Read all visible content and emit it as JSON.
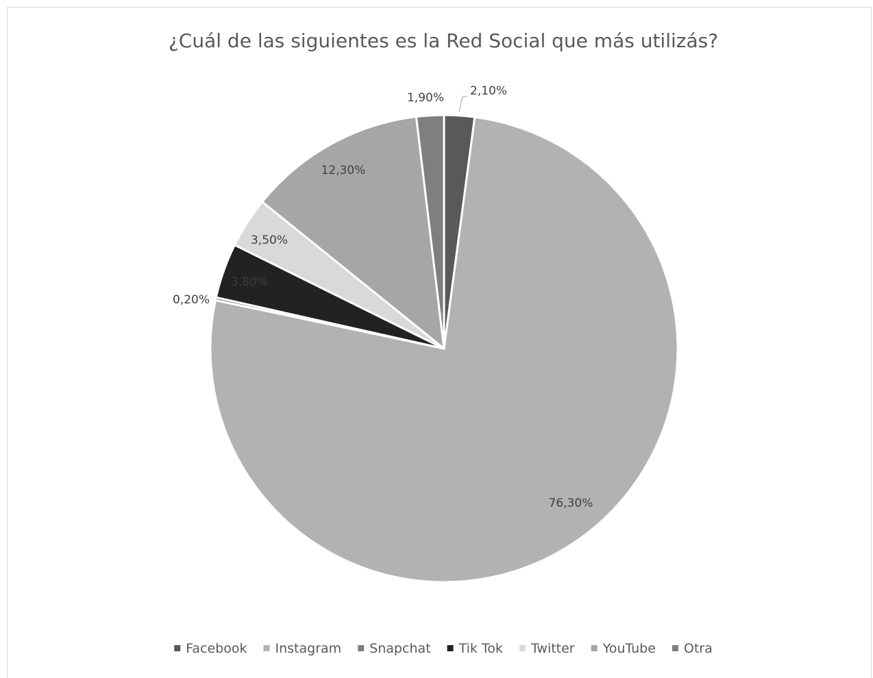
{
  "chart_data": {
    "type": "pie",
    "title": "¿Cuál de las siguientes es la Red Social que más utilizás?",
    "legend_position": "bottom",
    "slices": [
      {
        "name": "Facebook",
        "value": 2.1,
        "label": "2,10%",
        "color": "#595959",
        "label_color": "#404040"
      },
      {
        "name": "Instagram",
        "value": 76.3,
        "label": "76,30%",
        "color": "#b2b2b2",
        "label_color": "#404040"
      },
      {
        "name": "Snapchat",
        "value": 0.2,
        "label": "0,20%",
        "color": "#7f7f7f",
        "label_color": "#404040"
      },
      {
        "name": "Tik Tok",
        "value": 3.8,
        "label": "3,80%",
        "color": "#222222",
        "label_color": "#3a3a3a"
      },
      {
        "name": "Twitter",
        "value": 3.5,
        "label": "3,50%",
        "color": "#d9d9d9",
        "label_color": "#404040"
      },
      {
        "name": "YouTube",
        "value": 12.3,
        "label": "12,30%",
        "color": "#a6a6a6",
        "label_color": "#404040"
      },
      {
        "name": "Otra",
        "value": 1.9,
        "label": "1,90%",
        "color": "#7f7f7f",
        "label_color": "#404040"
      }
    ]
  }
}
